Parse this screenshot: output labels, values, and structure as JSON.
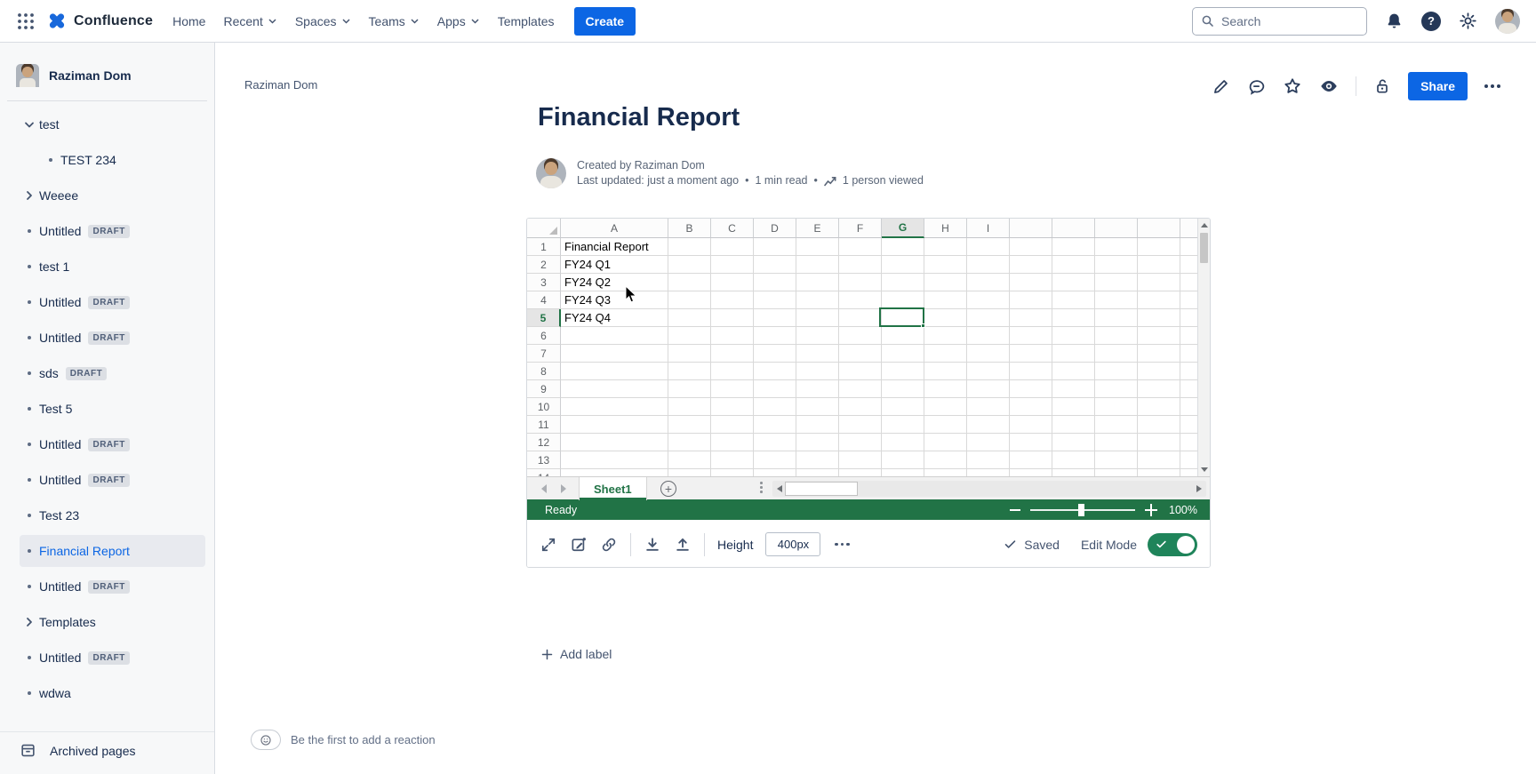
{
  "topnav": {
    "logo_text": "Confluence",
    "nav_items": [
      {
        "label": "Home",
        "dropdown": false
      },
      {
        "label": "Recent",
        "dropdown": true
      },
      {
        "label": "Spaces",
        "dropdown": true
      },
      {
        "label": "Teams",
        "dropdown": true
      },
      {
        "label": "Apps",
        "dropdown": true
      },
      {
        "label": "Templates",
        "dropdown": false
      }
    ],
    "create_label": "Create",
    "search_placeholder": "Search"
  },
  "sidebar": {
    "space_name": "Raziman Dom",
    "draft_badge": "DRAFT",
    "archived_label": "Archived pages",
    "items": [
      {
        "label": "test",
        "chevron": "down",
        "level": 0,
        "draft": false,
        "selected": false
      },
      {
        "label": "TEST 234",
        "bullet": true,
        "level": 1,
        "draft": false,
        "selected": false
      },
      {
        "label": "Weeee",
        "chevron": "right",
        "level": 0,
        "draft": false,
        "selected": false
      },
      {
        "label": "Untitled",
        "bullet": true,
        "level": 0,
        "draft": true,
        "selected": false
      },
      {
        "label": "test 1",
        "bullet": true,
        "level": 0,
        "draft": false,
        "selected": false
      },
      {
        "label": "Untitled",
        "bullet": true,
        "level": 0,
        "draft": true,
        "selected": false
      },
      {
        "label": "Untitled",
        "bullet": true,
        "level": 0,
        "draft": true,
        "selected": false
      },
      {
        "label": "sds",
        "bullet": true,
        "level": 0,
        "draft": true,
        "selected": false
      },
      {
        "label": "Test 5",
        "bullet": true,
        "level": 0,
        "draft": false,
        "selected": false
      },
      {
        "label": "Untitled",
        "bullet": true,
        "level": 0,
        "draft": true,
        "selected": false
      },
      {
        "label": "Untitled",
        "bullet": true,
        "level": 0,
        "draft": true,
        "selected": false
      },
      {
        "label": "Test 23",
        "bullet": true,
        "level": 0,
        "draft": false,
        "selected": false
      },
      {
        "label": "Financial Report",
        "bullet": true,
        "level": 0,
        "draft": false,
        "selected": true
      },
      {
        "label": "Untitled",
        "bullet": true,
        "level": 0,
        "draft": true,
        "selected": false
      },
      {
        "label": "Templates",
        "chevron": "right",
        "level": 0,
        "draft": false,
        "selected": false
      },
      {
        "label": "Untitled",
        "bullet": true,
        "level": 0,
        "draft": true,
        "selected": false
      },
      {
        "label": "wdwa",
        "bullet": true,
        "level": 0,
        "draft": false,
        "selected": false
      }
    ]
  },
  "page": {
    "breadcrumb": "Raziman Dom",
    "title": "Financial Report",
    "byline": {
      "created": "Created by Raziman Dom",
      "updated": "Last updated: just a moment ago",
      "separator": "•",
      "read_time": "1 min read",
      "views": "1 person viewed"
    },
    "share_label": "Share",
    "add_label_text": "Add label",
    "reaction_text": "Be the first to add a reaction"
  },
  "spreadsheet": {
    "columns": [
      "A",
      "B",
      "C",
      "D",
      "E",
      "F",
      "G",
      "H",
      "I"
    ],
    "visible_rows": 14,
    "cells": [
      {
        "ref": "A1",
        "value": "Financial Report"
      },
      {
        "ref": "A2",
        "value": "FY24 Q1"
      },
      {
        "ref": "A3",
        "value": "FY24 Q2"
      },
      {
        "ref": "A4",
        "value": "FY24 Q3"
      },
      {
        "ref": "A5",
        "value": "FY24 Q4"
      }
    ],
    "selection": {
      "cell": "G5",
      "column": "G",
      "row": 5
    },
    "sheet_tab": "Sheet1",
    "status": "Ready",
    "zoom_level": "100%"
  },
  "embed_toolbar": {
    "height_label": "Height",
    "height_value": "400px",
    "saved_label": "Saved",
    "edit_mode_label": "Edit Mode",
    "toggle_on": true
  },
  "icons": [
    "app-grid-icon",
    "confluence-logo-mark",
    "search-icon",
    "notifications-bell-icon",
    "help-icon",
    "settings-gear-icon",
    "user-avatar",
    "edit-pencil-icon",
    "comment-icon",
    "star-icon",
    "watch-eye-icon",
    "unlock-icon",
    "more-icon",
    "views-chart-icon",
    "expand-icon",
    "edit-embed-icon",
    "link-icon",
    "download-icon",
    "upload-icon",
    "check-icon",
    "toggle-switch",
    "plus-icon",
    "emoji-smile-icon",
    "archive-box-icon"
  ],
  "colors": {
    "accent_blue": "#0C66E4",
    "excel_green": "#217346",
    "toggle_green": "#1F845A",
    "selected_text_blue": "#0C66E4",
    "statusbar_text": "#FFFFFF"
  }
}
